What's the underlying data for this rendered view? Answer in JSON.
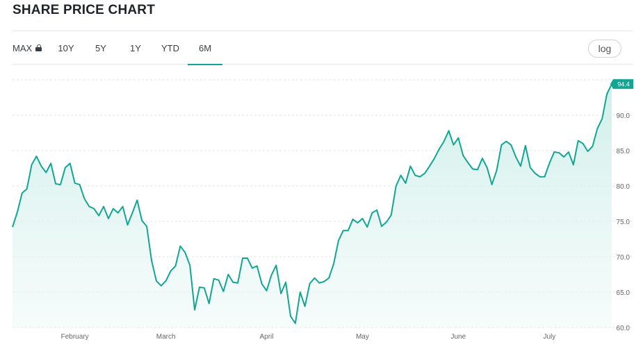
{
  "header": {
    "title": "SHARE PRICE CHART"
  },
  "range_tabs": [
    {
      "label": "MAX",
      "locked": true,
      "icon": "lock-icon"
    },
    {
      "label": "10Y"
    },
    {
      "label": "5Y"
    },
    {
      "label": "1Y"
    },
    {
      "label": "YTD"
    },
    {
      "label": "6M",
      "active": true
    }
  ],
  "log_button": {
    "label": "log"
  },
  "colors": {
    "accent": "#12a594",
    "fill_top": "#cdeee9",
    "grid": "#e3e3e3"
  },
  "chart_data": {
    "type": "area",
    "title": "",
    "xlabel": "",
    "ylabel": "",
    "ylim": [
      60,
      95
    ],
    "yticks": [
      60.0,
      65.0,
      70.0,
      75.0,
      80.0,
      85.0,
      90.0
    ],
    "ytick_labels": [
      "60.0",
      "65.0",
      "70.0",
      "75.0",
      "80.0",
      "85.0",
      "90.0"
    ],
    "y_axis_side": "right",
    "grid": true,
    "legend": "none",
    "x_month_labels": [
      {
        "label": "February",
        "index": 13
      },
      {
        "label": "March",
        "index": 32
      },
      {
        "label": "April",
        "index": 53
      },
      {
        "label": "May",
        "index": 73
      },
      {
        "label": "June",
        "index": 93
      },
      {
        "label": "July",
        "index": 112
      }
    ],
    "last_value_label": "94.4",
    "series": [
      {
        "values": [
          74.2,
          76.3,
          79.0,
          79.6,
          83.0,
          84.2,
          82.8,
          81.9,
          83.2,
          80.3,
          80.2,
          82.6,
          83.2,
          80.4,
          80.2,
          78.2,
          77.1,
          76.8,
          75.8,
          77.1,
          75.4,
          76.8,
          76.2,
          77.1,
          74.5,
          76.2,
          78.0,
          75.1,
          74.3,
          69.5,
          66.6,
          65.9,
          66.6,
          68.0,
          68.7,
          71.5,
          70.6,
          68.8,
          62.5,
          65.7,
          65.6,
          63.4,
          66.9,
          66.7,
          65.1,
          67.5,
          66.4,
          66.3,
          69.8,
          69.8,
          68.4,
          68.7,
          66.2,
          65.2,
          67.4,
          68.8,
          64.8,
          66.4,
          61.6,
          60.6,
          65.0,
          63.0,
          66.2,
          67.0,
          66.3,
          66.5,
          67.0,
          69.0,
          72.3,
          73.7,
          73.7,
          75.3,
          74.8,
          75.4,
          74.2,
          76.2,
          76.6,
          74.3,
          74.9,
          75.9,
          80.0,
          81.5,
          80.4,
          82.8,
          81.5,
          81.3,
          81.8,
          82.8,
          83.9,
          85.2,
          86.3,
          87.8,
          85.8,
          86.8,
          84.3,
          83.3,
          82.4,
          82.3,
          83.9,
          82.6,
          80.2,
          82.2,
          85.8,
          86.3,
          85.8,
          84.1,
          82.8,
          85.7,
          82.6,
          81.8,
          81.3,
          81.3,
          83.2,
          84.8,
          84.7,
          84.1,
          84.8,
          83.0,
          86.4,
          86.0,
          84.9,
          85.6,
          88.1,
          89.5,
          93.0,
          94.4
        ]
      }
    ]
  }
}
